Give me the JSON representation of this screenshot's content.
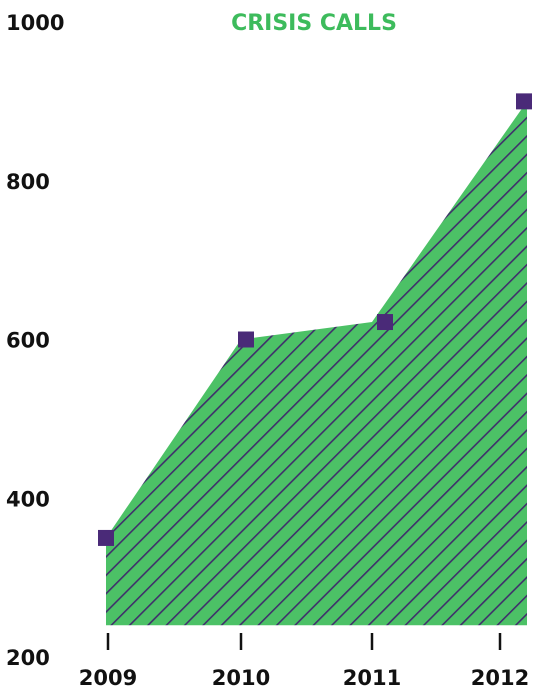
{
  "colors": {
    "area_fill": "#4cc166",
    "hatch": "#3f2f6b",
    "marker": "#4a2a78",
    "title": "#3dbb5c",
    "text": "#111111"
  },
  "chart_data": {
    "type": "area",
    "title": "CRISIS CALLS",
    "xlabel": "",
    "ylabel": "",
    "categories": [
      "2009",
      "2010",
      "2011",
      "2012"
    ],
    "series": [
      {
        "values": [
          350,
          600,
          622,
          900
        ]
      }
    ],
    "ylim": [
      200,
      1000
    ],
    "y_ticks": [
      "200",
      "400",
      "600",
      "800",
      "1000"
    ],
    "area_baseline": 240,
    "grid": false,
    "legend": "none",
    "marker": "square",
    "fill_pattern": "diagonal-hatch"
  }
}
